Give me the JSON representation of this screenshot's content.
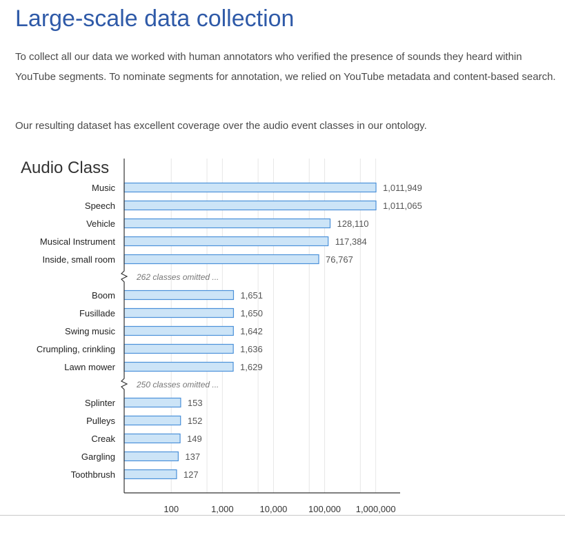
{
  "page": {
    "title": "Large-scale data collection",
    "paragraphs": [
      "To collect all our data we worked with human annotators who verified the presence of sounds they heard within YouTube segments. To nominate segments for annotation, we relied on YouTube metadata and content-based search.",
      "Our resulting dataset has excellent coverage over the audio event classes in our ontology."
    ]
  },
  "chart_data": {
    "type": "bar",
    "orientation": "horizontal",
    "title": "Audio Class",
    "xlabel": "",
    "ylabel": "",
    "x_scale": "log",
    "xlim": [
      12,
      3000000
    ],
    "x_ticks": [
      100,
      1000,
      10000,
      100000,
      1000000
    ],
    "x_tick_labels": [
      "100",
      "1,000",
      "10,000",
      "100,000",
      "1,000,000"
    ],
    "grid": true,
    "bar_color": "#cce4f7",
    "bar_edge_color": "#4a90d9",
    "rows": [
      {
        "kind": "bar",
        "label": "Music",
        "value": 1011949,
        "value_label": "1,011,949"
      },
      {
        "kind": "bar",
        "label": "Speech",
        "value": 1011065,
        "value_label": "1,011,065"
      },
      {
        "kind": "bar",
        "label": "Vehicle",
        "value": 128110,
        "value_label": "128,110"
      },
      {
        "kind": "bar",
        "label": "Musical Instrument",
        "value": 117384,
        "value_label": "117,384"
      },
      {
        "kind": "bar",
        "label": "Inside, small room",
        "value": 76767,
        "value_label": "76,767"
      },
      {
        "kind": "gap",
        "label": "262 classes omitted ..."
      },
      {
        "kind": "bar",
        "label": "Boom",
        "value": 1651,
        "value_label": "1,651"
      },
      {
        "kind": "bar",
        "label": "Fusillade",
        "value": 1650,
        "value_label": "1,650"
      },
      {
        "kind": "bar",
        "label": "Swing music",
        "value": 1642,
        "value_label": "1,642"
      },
      {
        "kind": "bar",
        "label": "Crumpling, crinkling",
        "value": 1636,
        "value_label": "1,636"
      },
      {
        "kind": "bar",
        "label": "Lawn mower",
        "value": 1629,
        "value_label": "1,629"
      },
      {
        "kind": "gap",
        "label": "250 classes omitted ..."
      },
      {
        "kind": "bar",
        "label": "Splinter",
        "value": 153,
        "value_label": "153"
      },
      {
        "kind": "bar",
        "label": "Pulleys",
        "value": 152,
        "value_label": "152"
      },
      {
        "kind": "bar",
        "label": "Creak",
        "value": 149,
        "value_label": "149"
      },
      {
        "kind": "bar",
        "label": "Gargling",
        "value": 137,
        "value_label": "137"
      },
      {
        "kind": "bar",
        "label": "Toothbrush",
        "value": 127,
        "value_label": "127"
      }
    ]
  }
}
